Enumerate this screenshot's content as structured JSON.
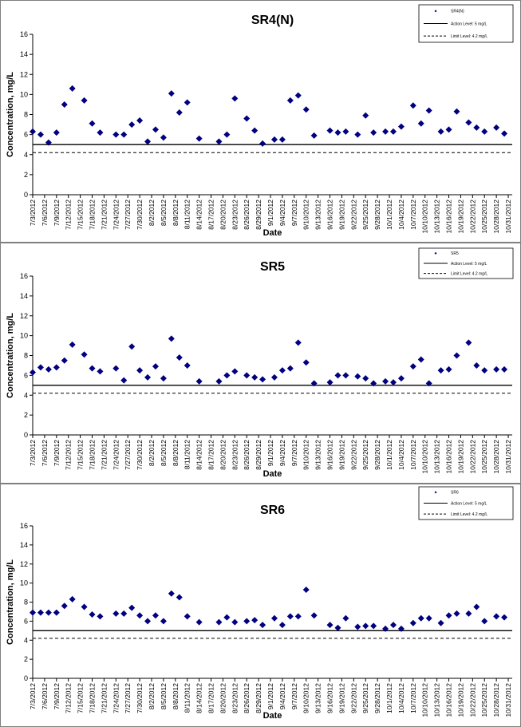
{
  "chart_data": [
    {
      "type": "scatter",
      "title": "SR4(N)",
      "xlabel": "Date",
      "ylabel": "Concentration, mg/L",
      "ylim": [
        0,
        16
      ],
      "yticks": [
        0,
        2,
        4,
        6,
        8,
        10,
        12,
        14,
        16
      ],
      "x_ticks": [
        "7/3/2012",
        "7/6/2012",
        "7/9/2012",
        "7/12/2012",
        "7/15/2012",
        "7/18/2012",
        "7/21/2012",
        "7/24/2012",
        "7/27/2012",
        "7/30/2012",
        "8/2/2012",
        "8/5/2012",
        "8/8/2012",
        "8/11/2012",
        "8/14/2012",
        "8/17/2012",
        "8/20/2012",
        "8/23/2012",
        "8/26/2012",
        "8/29/2012",
        "9/1/2012",
        "9/4/2012",
        "9/7/2012",
        "9/10/2012",
        "9/13/2012",
        "9/16/2012",
        "9/19/2012",
        "9/22/2012",
        "9/25/2012",
        "9/28/2012",
        "10/1/2012",
        "10/4/2012",
        "10/7/2012",
        "10/10/2012",
        "10/13/2012",
        "10/16/2012",
        "10/19/2012",
        "10/22/2012",
        "10/25/2012",
        "10/28/2012",
        "10/31/2012"
      ],
      "x_range": [
        "7/3/2012",
        "11/1/2012"
      ],
      "grid": false,
      "legend_position": "top-right",
      "series": [
        {
          "name": "SR4(N)",
          "marker": "diamond",
          "color": "#000080",
          "x": [
            "7/3/2012",
            "7/5/2012",
            "7/7/2012",
            "7/9/2012",
            "7/11/2012",
            "7/13/2012",
            "7/16/2012",
            "7/18/2012",
            "7/20/2012",
            "7/24/2012",
            "7/26/2012",
            "7/28/2012",
            "7/30/2012",
            "8/1/2012",
            "8/3/2012",
            "8/5/2012",
            "8/7/2012",
            "8/9/2012",
            "8/11/2012",
            "8/14/2012",
            "8/19/2012",
            "8/21/2012",
            "8/23/2012",
            "8/26/2012",
            "8/28/2012",
            "8/30/2012",
            "9/2/2012",
            "9/4/2012",
            "9/6/2012",
            "9/8/2012",
            "9/10/2012",
            "9/12/2012",
            "9/16/2012",
            "9/18/2012",
            "9/20/2012",
            "9/23/2012",
            "9/25/2012",
            "9/27/2012",
            "9/30/2012",
            "10/2/2012",
            "10/4/2012",
            "10/7/2012",
            "10/9/2012",
            "10/11/2012",
            "10/14/2012",
            "10/16/2012",
            "10/18/2012",
            "10/21/2012",
            "10/23/2012",
            "10/25/2012",
            "10/28/2012",
            "10/30/2012"
          ],
          "y": [
            6.3,
            6.0,
            5.2,
            6.2,
            9.0,
            10.6,
            9.4,
            7.1,
            6.2,
            6.0,
            6.0,
            7.0,
            7.4,
            5.3,
            6.5,
            5.7,
            10.1,
            8.2,
            9.2,
            5.6,
            5.3,
            6.0,
            9.6,
            7.6,
            6.4,
            5.1,
            5.5,
            5.5,
            9.4,
            9.9,
            8.5,
            5.9,
            6.4,
            6.2,
            6.3,
            6.0,
            7.9,
            6.2,
            6.3,
            6.3,
            6.8,
            8.9,
            7.1,
            8.4,
            6.3,
            6.5,
            8.3,
            7.2,
            6.7,
            6.3,
            6.7,
            6.1
          ]
        },
        {
          "name": "Action Level: 5 mg/L",
          "line": "solid",
          "y": 5
        },
        {
          "name": "Limit Level: 4.2 mg/L",
          "line": "dashed",
          "y": 4.2
        }
      ]
    },
    {
      "type": "scatter",
      "title": "SR5",
      "xlabel": "Date",
      "ylabel": "Concentration, mg/L",
      "ylim": [
        0,
        16
      ],
      "yticks": [
        0,
        2,
        4,
        6,
        8,
        10,
        12,
        14,
        16
      ],
      "x_ticks": [
        "7/3/2012",
        "7/6/2012",
        "7/9/2012",
        "7/12/2012",
        "7/15/2012",
        "7/18/2012",
        "7/21/2012",
        "7/24/2012",
        "7/27/2012",
        "7/30/2012",
        "8/2/2012",
        "8/5/2012",
        "8/8/2012",
        "8/11/2012",
        "8/14/2012",
        "8/17/2012",
        "8/20/2012",
        "8/23/2012",
        "8/26/2012",
        "8/29/2012",
        "9/1/2012",
        "9/4/2012",
        "9/7/2012",
        "9/10/2012",
        "9/13/2012",
        "9/16/2012",
        "9/19/2012",
        "9/22/2012",
        "9/25/2012",
        "9/28/2012",
        "10/1/2012",
        "10/4/2012",
        "10/7/2012",
        "10/10/2012",
        "10/13/2012",
        "10/16/2012",
        "10/19/2012",
        "10/22/2012",
        "10/25/2012",
        "10/28/2012",
        "10/31/2012"
      ],
      "x_range": [
        "7/3/2012",
        "11/1/2012"
      ],
      "grid": false,
      "legend_position": "top-right",
      "series": [
        {
          "name": "SR5",
          "marker": "diamond",
          "color": "#000080",
          "x": [
            "7/3/2012",
            "7/5/2012",
            "7/7/2012",
            "7/9/2012",
            "7/11/2012",
            "7/13/2012",
            "7/16/2012",
            "7/18/2012",
            "7/20/2012",
            "7/24/2012",
            "7/26/2012",
            "7/28/2012",
            "7/30/2012",
            "8/1/2012",
            "8/3/2012",
            "8/5/2012",
            "8/7/2012",
            "8/9/2012",
            "8/11/2012",
            "8/14/2012",
            "8/19/2012",
            "8/21/2012",
            "8/23/2012",
            "8/26/2012",
            "8/28/2012",
            "8/30/2012",
            "9/2/2012",
            "9/4/2012",
            "9/6/2012",
            "9/8/2012",
            "9/10/2012",
            "9/12/2012",
            "9/16/2012",
            "9/18/2012",
            "9/20/2012",
            "9/23/2012",
            "9/25/2012",
            "9/27/2012",
            "9/30/2012",
            "10/2/2012",
            "10/4/2012",
            "10/7/2012",
            "10/9/2012",
            "10/11/2012",
            "10/14/2012",
            "10/16/2012",
            "10/18/2012",
            "10/21/2012",
            "10/23/2012",
            "10/25/2012",
            "10/28/2012",
            "10/30/2012"
          ],
          "y": [
            6.3,
            6.8,
            6.6,
            6.8,
            7.5,
            9.1,
            8.1,
            6.7,
            6.4,
            6.7,
            5.5,
            8.9,
            6.5,
            5.8,
            6.9,
            5.7,
            9.7,
            7.8,
            7.0,
            5.4,
            5.4,
            6.0,
            6.4,
            6.0,
            5.8,
            5.6,
            5.8,
            6.5,
            6.7,
            9.3,
            7.3,
            5.2,
            5.3,
            6.0,
            6.0,
            5.9,
            5.7,
            5.2,
            5.4,
            5.3,
            5.7,
            6.9,
            7.6,
            5.2,
            6.5,
            6.6,
            8.0,
            9.3,
            7.0,
            6.5,
            6.6,
            6.6
          ]
        },
        {
          "name": "Action Level: 5 mg/L",
          "line": "solid",
          "y": 5
        },
        {
          "name": "Limit Level: 4.2 mg/L",
          "line": "dashed",
          "y": 4.2
        }
      ]
    },
    {
      "type": "scatter",
      "title": "SR6",
      "xlabel": "Date",
      "ylabel": "Concentration, mg/L",
      "ylim": [
        0,
        16
      ],
      "yticks": [
        0,
        2,
        4,
        6,
        8,
        10,
        12,
        14,
        16
      ],
      "x_ticks": [
        "7/3/2012",
        "7/6/2012",
        "7/9/2012",
        "7/12/2012",
        "7/15/2012",
        "7/18/2012",
        "7/21/2012",
        "7/24/2012",
        "7/27/2012",
        "7/30/2012",
        "8/2/2012",
        "8/5/2012",
        "8/8/2012",
        "8/11/2012",
        "8/14/2012",
        "8/17/2012",
        "8/20/2012",
        "8/23/2012",
        "8/26/2012",
        "8/29/2012",
        "9/1/2012",
        "9/4/2012",
        "9/7/2012",
        "9/10/2012",
        "9/13/2012",
        "9/16/2012",
        "9/19/2012",
        "9/22/2012",
        "9/25/2012",
        "9/28/2012",
        "10/1/2012",
        "10/4/2012",
        "10/7/2012",
        "10/10/2012",
        "10/13/2012",
        "10/16/2012",
        "10/19/2012",
        "10/22/2012",
        "10/25/2012",
        "10/28/2012",
        "10/31/2012"
      ],
      "x_range": [
        "7/3/2012",
        "11/1/2012"
      ],
      "grid": false,
      "legend_position": "top-right",
      "series": [
        {
          "name": "SR6",
          "marker": "diamond",
          "color": "#000080",
          "x": [
            "7/3/2012",
            "7/5/2012",
            "7/7/2012",
            "7/9/2012",
            "7/11/2012",
            "7/13/2012",
            "7/16/2012",
            "7/18/2012",
            "7/20/2012",
            "7/24/2012",
            "7/26/2012",
            "7/28/2012",
            "7/30/2012",
            "8/1/2012",
            "8/3/2012",
            "8/5/2012",
            "8/7/2012",
            "8/9/2012",
            "8/11/2012",
            "8/14/2012",
            "8/19/2012",
            "8/21/2012",
            "8/23/2012",
            "8/26/2012",
            "8/28/2012",
            "8/30/2012",
            "9/2/2012",
            "9/4/2012",
            "9/6/2012",
            "9/8/2012",
            "9/10/2012",
            "9/12/2012",
            "9/16/2012",
            "9/18/2012",
            "9/20/2012",
            "9/23/2012",
            "9/25/2012",
            "9/27/2012",
            "9/30/2012",
            "10/2/2012",
            "10/4/2012",
            "10/7/2012",
            "10/9/2012",
            "10/11/2012",
            "10/14/2012",
            "10/16/2012",
            "10/18/2012",
            "10/21/2012",
            "10/23/2012",
            "10/25/2012",
            "10/28/2012",
            "10/30/2012"
          ],
          "y": [
            6.9,
            6.9,
            6.9,
            6.9,
            7.6,
            8.3,
            7.5,
            6.7,
            6.5,
            6.8,
            6.8,
            7.4,
            6.6,
            6.0,
            6.6,
            6.0,
            8.9,
            8.5,
            6.5,
            5.9,
            5.9,
            6.4,
            5.9,
            6.0,
            6.1,
            5.6,
            6.3,
            5.6,
            6.5,
            6.5,
            9.3,
            6.6,
            5.6,
            5.3,
            6.3,
            5.4,
            5.5,
            5.5,
            5.2,
            5.6,
            5.2,
            5.8,
            6.3,
            6.3,
            5.8,
            6.6,
            6.8,
            6.8,
            7.5,
            6.0,
            6.5,
            6.4
          ]
        },
        {
          "name": "Action Level: 5 mg/L",
          "line": "solid",
          "y": 5
        },
        {
          "name": "Limit Level: 4.2 mg/L",
          "line": "dashed",
          "y": 4.2
        }
      ]
    }
  ]
}
